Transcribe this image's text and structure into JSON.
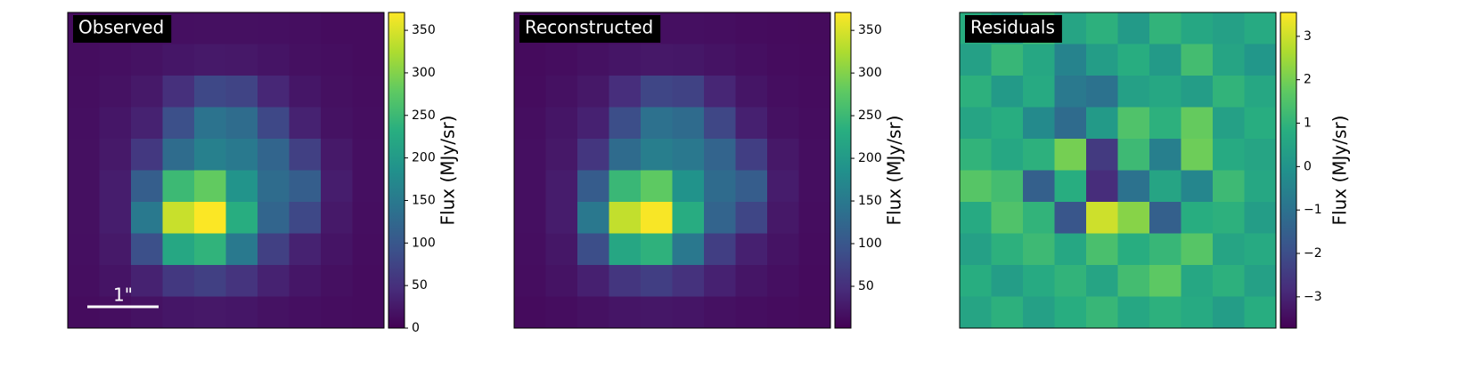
{
  "chart_data": [
    {
      "type": "heatmap",
      "title": "Observed",
      "colormap": "viridis",
      "colorbar_label": "Flux (MJy/sr)",
      "annotation": "1\"",
      "zlim": [
        0,
        371
      ],
      "zticks": [
        0,
        50,
        100,
        150,
        200,
        250,
        300,
        350
      ],
      "z": [
        [
          12,
          12,
          14,
          15,
          16,
          16,
          15,
          14,
          12,
          12
        ],
        [
          13,
          15,
          18,
          22,
          25,
          24,
          20,
          16,
          14,
          12
        ],
        [
          14,
          18,
          25,
          50,
          80,
          75,
          40,
          22,
          16,
          13
        ],
        [
          15,
          22,
          35,
          90,
          140,
          130,
          80,
          35,
          18,
          14
        ],
        [
          16,
          25,
          60,
          130,
          160,
          150,
          120,
          70,
          25,
          15
        ],
        [
          16,
          30,
          110,
          250,
          280,
          190,
          130,
          110,
          30,
          15
        ],
        [
          16,
          30,
          150,
          340,
          370,
          230,
          120,
          80,
          25,
          14
        ],
        [
          15,
          25,
          90,
          220,
          240,
          150,
          70,
          35,
          20,
          13
        ],
        [
          14,
          20,
          35,
          60,
          70,
          55,
          35,
          22,
          16,
          12
        ],
        [
          12,
          14,
          18,
          22,
          24,
          22,
          18,
          15,
          13,
          12
        ]
      ]
    },
    {
      "type": "heatmap",
      "title": "Reconstructed",
      "colormap": "viridis",
      "colorbar_label": "Flux (MJy/sr)",
      "zlim": [
        1,
        371
      ],
      "zticks": [
        50,
        100,
        150,
        200,
        250,
        300,
        350
      ],
      "z": [
        [
          11,
          12,
          13,
          15,
          16,
          16,
          15,
          13,
          12,
          11
        ],
        [
          12,
          14,
          18,
          22,
          25,
          24,
          20,
          16,
          13,
          12
        ],
        [
          13,
          18,
          25,
          49,
          79,
          74,
          40,
          22,
          15,
          13
        ],
        [
          15,
          22,
          35,
          89,
          138,
          129,
          80,
          34,
          18,
          14
        ],
        [
          16,
          25,
          59,
          129,
          158,
          149,
          119,
          69,
          25,
          15
        ],
        [
          16,
          29,
          108,
          248,
          278,
          189,
          129,
          109,
          29,
          15
        ],
        [
          16,
          29,
          149,
          337,
          368,
          229,
          119,
          79,
          25,
          14
        ],
        [
          15,
          24,
          89,
          219,
          238,
          149,
          69,
          34,
          20,
          13
        ],
        [
          14,
          20,
          34,
          59,
          69,
          54,
          35,
          22,
          16,
          12
        ],
        [
          12,
          14,
          18,
          22,
          24,
          22,
          18,
          15,
          13,
          11
        ]
      ]
    },
    {
      "type": "heatmap",
      "title": "Residuals",
      "colormap": "viridis",
      "colorbar_label": "Flux (MJy/sr)",
      "zlim": [
        -3.72,
        3.55
      ],
      "zticks": [
        {
          "value": -3,
          "label": "−3"
        },
        {
          "value": -2,
          "label": "−2"
        },
        {
          "value": -1,
          "label": "−1"
        },
        0,
        1,
        2,
        3
      ],
      "z": [
        [
          0.8,
          0.3,
          1.2,
          0.5,
          0.9,
          0.2,
          1.0,
          0.6,
          0.4,
          0.7
        ],
        [
          0.4,
          1.1,
          0.6,
          -0.5,
          0.3,
          0.8,
          0.2,
          1.3,
          0.5,
          0.1
        ],
        [
          0.9,
          0.2,
          0.7,
          -0.8,
          -1.0,
          0.4,
          0.6,
          0.3,
          1.0,
          0.6
        ],
        [
          0.5,
          0.8,
          -0.3,
          -1.2,
          0.2,
          1.5,
          0.9,
          1.8,
          0.4,
          0.8
        ],
        [
          1.0,
          0.6,
          0.9,
          2.0,
          -2.5,
          1.2,
          -0.6,
          1.9,
          0.7,
          0.5
        ],
        [
          1.6,
          1.3,
          -1.5,
          0.8,
          -2.8,
          -1.0,
          0.5,
          -0.4,
          1.2,
          0.6
        ],
        [
          0.7,
          1.5,
          1.0,
          -1.8,
          3.0,
          2.2,
          -1.5,
          0.8,
          0.9,
          0.3
        ],
        [
          0.4,
          0.9,
          1.2,
          0.6,
          1.4,
          0.8,
          1.1,
          1.6,
          0.5,
          0.7
        ],
        [
          0.8,
          0.3,
          0.7,
          1.0,
          0.5,
          1.3,
          1.7,
          0.6,
          0.9,
          0.4
        ],
        [
          0.5,
          0.9,
          0.4,
          0.8,
          1.1,
          0.6,
          0.9,
          0.7,
          0.3,
          0.8
        ]
      ]
    }
  ]
}
